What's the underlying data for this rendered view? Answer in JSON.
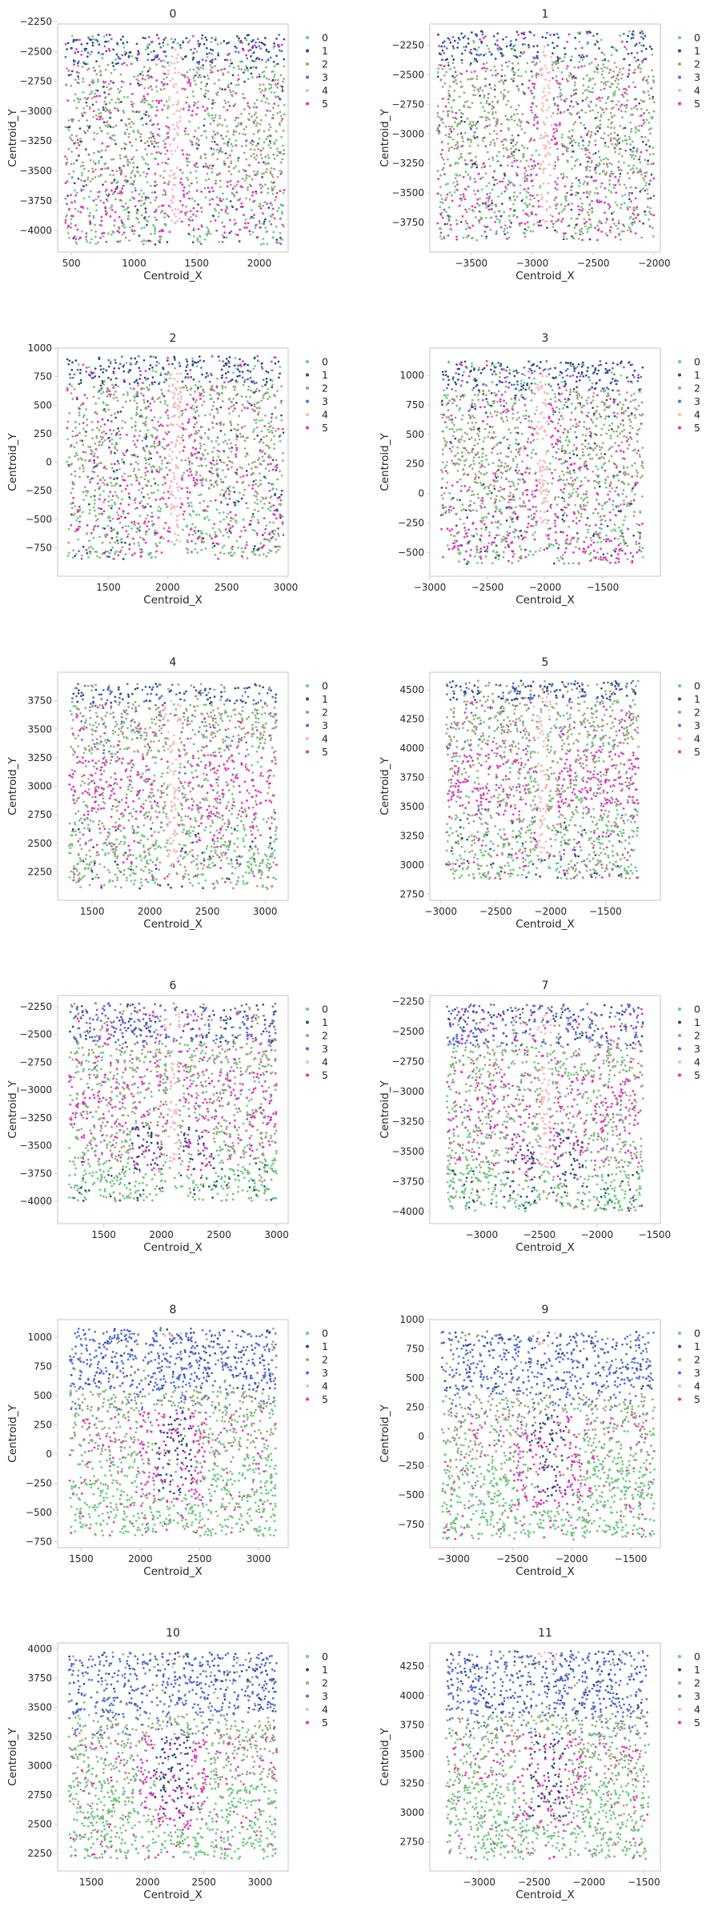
{
  "chart_data": {
    "type": "scatter",
    "xlabel": "Centroid_X",
    "ylabel": "Centroid_Y",
    "grid": false,
    "legend": "right-outside",
    "legend_entries": [
      "0",
      "1",
      "2",
      "3",
      "4",
      "5"
    ],
    "colors": {
      "0": "#66cc7a",
      "1": "#2e4a80",
      "2": "#9ea27e",
      "3": "#4f6fd8",
      "4": "#f7b6b9",
      "5": "#e62ebf"
    },
    "panels": [
      {
        "title": "0",
        "xlim": [
          390,
          2230
        ],
        "ylim": [
          -4180,
          -2270
        ],
        "xticks": [
          500,
          1000,
          1500,
          2000
        ],
        "yticks": [
          -4000,
          -3750,
          -3500,
          -3250,
          -3000,
          -2750,
          -2500,
          -2250
        ],
        "region": {
          "x": [
            450,
            2200
          ],
          "y": [
            -4120,
            -2360
          ]
        },
        "pattern": 0
      },
      {
        "title": "1",
        "xlim": [
          -3840,
          -1950
        ],
        "ylim": [
          -4000,
          -2070
        ],
        "xticks": [
          -3500,
          -3000,
          -2500,
          -2000
        ],
        "yticks": [
          -3750,
          -3500,
          -3250,
          -3000,
          -2750,
          -2500,
          -2250
        ],
        "region": {
          "x": [
            -3780,
            -2000
          ],
          "y": [
            -3900,
            -2130
          ]
        },
        "pattern": 0
      },
      {
        "title": "2",
        "xlim": [
          1070,
          3020
        ],
        "ylim": [
          -1000,
          1000
        ],
        "xticks": [
          1500,
          2000,
          2500,
          3000
        ],
        "yticks": [
          -750,
          -500,
          -250,
          0,
          250,
          500,
          750,
          1000
        ],
        "region": {
          "x": [
            1150,
            2980
          ],
          "y": [
            -850,
            930
          ]
        },
        "pattern": 0
      },
      {
        "title": "3",
        "xlim": [
          -3000,
          -1000
        ],
        "ylim": [
          -700,
          1230
        ],
        "xticks": [
          -3000,
          -2500,
          -2000,
          -1500
        ],
        "yticks": [
          -500,
          -250,
          0,
          250,
          500,
          750,
          1000
        ],
        "region": {
          "x": [
            -2900,
            -1150
          ],
          "y": [
            -600,
            1120
          ]
        },
        "pattern": 0
      },
      {
        "title": "4",
        "xlim": [
          1200,
          3200
        ],
        "ylim": [
          2000,
          4000
        ],
        "xticks": [
          1500,
          2000,
          2500,
          3000
        ],
        "yticks": [
          2250,
          2500,
          2750,
          3000,
          3250,
          3500,
          3750
        ],
        "region": {
          "x": [
            1300,
            3100
          ],
          "y": [
            2100,
            3900
          ]
        },
        "pattern": 1
      },
      {
        "title": "5",
        "xlim": [
          -3100,
          -1000
        ],
        "ylim": [
          2700,
          4650
        ],
        "xticks": [
          -3000,
          -2500,
          -2000,
          -1500
        ],
        "yticks": [
          2750,
          3000,
          3250,
          3500,
          3750,
          4000,
          4250,
          4500
        ],
        "region": {
          "x": [
            -2950,
            -1200
          ],
          "y": [
            2880,
            4580
          ]
        },
        "pattern": 1
      },
      {
        "title": "6",
        "xlim": [
          1100,
          3100
        ],
        "ylim": [
          -4200,
          -2150
        ],
        "xticks": [
          1500,
          2000,
          2500,
          3000
        ],
        "yticks": [
          -4000,
          -3750,
          -3500,
          -3250,
          -3000,
          -2750,
          -2500,
          -2250
        ],
        "region": {
          "x": [
            1200,
            3000
          ],
          "y": [
            -4000,
            -2220
          ]
        },
        "pattern": 2
      },
      {
        "title": "7",
        "xlim": [
          -3450,
          -1450
        ],
        "ylim": [
          -4100,
          -2200
        ],
        "xticks": [
          -3000,
          -2500,
          -2000,
          -1500
        ],
        "yticks": [
          -4000,
          -3750,
          -3500,
          -3250,
          -3000,
          -2750,
          -2500,
          -2250
        ],
        "region": {
          "x": [
            -3300,
            -1600
          ],
          "y": [
            -4000,
            -2270
          ]
        },
        "pattern": 2
      },
      {
        "title": "8",
        "xlim": [
          1300,
          3250
        ],
        "ylim": [
          -800,
          1150
        ],
        "xticks": [
          1500,
          2000,
          2500,
          3000
        ],
        "yticks": [
          -750,
          -500,
          -250,
          0,
          250,
          500,
          750,
          1000
        ],
        "region": {
          "x": [
            1400,
            3150
          ],
          "y": [
            -700,
            1080
          ]
        },
        "pattern": 3
      },
      {
        "title": "9",
        "xlim": [
          -3200,
          -1250
        ],
        "ylim": [
          -950,
          1000
        ],
        "xticks": [
          -3000,
          -2500,
          -2000,
          -1500
        ],
        "yticks": [
          -750,
          -500,
          -250,
          0,
          250,
          500,
          750,
          1000
        ],
        "region": {
          "x": [
            -3100,
            -1300
          ],
          "y": [
            -880,
            900
          ]
        },
        "pattern": 3
      },
      {
        "title": "10",
        "xlim": [
          1200,
          3250
        ],
        "ylim": [
          2100,
          4050
        ],
        "xticks": [
          1500,
          2000,
          2500,
          3000
        ],
        "yticks": [
          2250,
          2500,
          2750,
          3000,
          3250,
          3500,
          3750,
          4000
        ],
        "region": {
          "x": [
            1300,
            3150
          ],
          "y": [
            2200,
            3970
          ]
        },
        "pattern": 3
      },
      {
        "title": "11",
        "xlim": [
          -3450,
          -1350
        ],
        "ylim": [
          2500,
          4450
        ],
        "xticks": [
          -3000,
          -2500,
          -2000,
          -1500
        ],
        "yticks": [
          2750,
          3000,
          3250,
          3500,
          3750,
          4000,
          4250
        ],
        "region": {
          "x": [
            -3300,
            -1450
          ],
          "y": [
            2600,
            4380
          ]
        },
        "pattern": 3
      }
    ]
  }
}
